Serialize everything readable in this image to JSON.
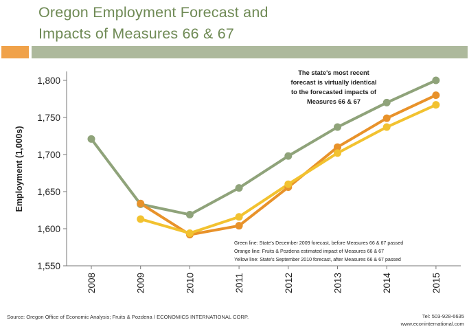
{
  "header": {
    "title_line1": "Oregon Employment Forecast and",
    "title_line2": "Impacts of Measures 66 & 67"
  },
  "colors": {
    "title": "#6f8a55",
    "band_orange": "#f0a24a",
    "band_green": "#adb99c"
  },
  "chart_data": {
    "type": "line",
    "title": "",
    "xlabel": "",
    "ylabel": "Employment (1,000s)",
    "ylim": [
      1550,
      1800
    ],
    "yticks": [
      1550,
      1600,
      1650,
      1700,
      1750,
      1800
    ],
    "ytick_labels": [
      "1,550",
      "1,600",
      "1,650",
      "1,700",
      "1,750",
      "1,800"
    ],
    "x": [
      "2008",
      "2009",
      "2010",
      "2011",
      "2012",
      "2013",
      "2014",
      "2015"
    ],
    "grid": false,
    "series": [
      {
        "color": "#8fa37a",
        "values": [
          1721,
          1633,
          1619,
          1655,
          1698,
          1737,
          1770,
          1800
        ]
      },
      {
        "color": "#e8922a",
        "values": [
          null,
          1634,
          1592,
          1604,
          1656,
          1710,
          1749,
          1780
        ]
      },
      {
        "color": "#f2c230",
        "values": [
          null,
          1613,
          1594,
          1616,
          1660,
          1702,
          1737,
          1767
        ]
      }
    ],
    "annotation": {
      "lines": [
        "The state's most recent",
        "forecast is virtually identical",
        "to the forecasted impacts of",
        "Measures 66 & 67"
      ]
    },
    "legend_notes": [
      "Green line: State's December 2009 forecast, before Measures 66 & 67 passed",
      "Orange line: Fruits & Pozdena estimated impact of Measures 66 & 67",
      "Yellow line: State's September 2010 forecast, after Measures 66 & 67 passed"
    ]
  },
  "footer": {
    "source": "Source: Oregon Office of Economic Analysis; Fruits & Pozdena / ECONOMICS INTERNATIONAL CORP.",
    "phone": "Tel: 503-928-6635",
    "website": "www.econinternational.com"
  }
}
